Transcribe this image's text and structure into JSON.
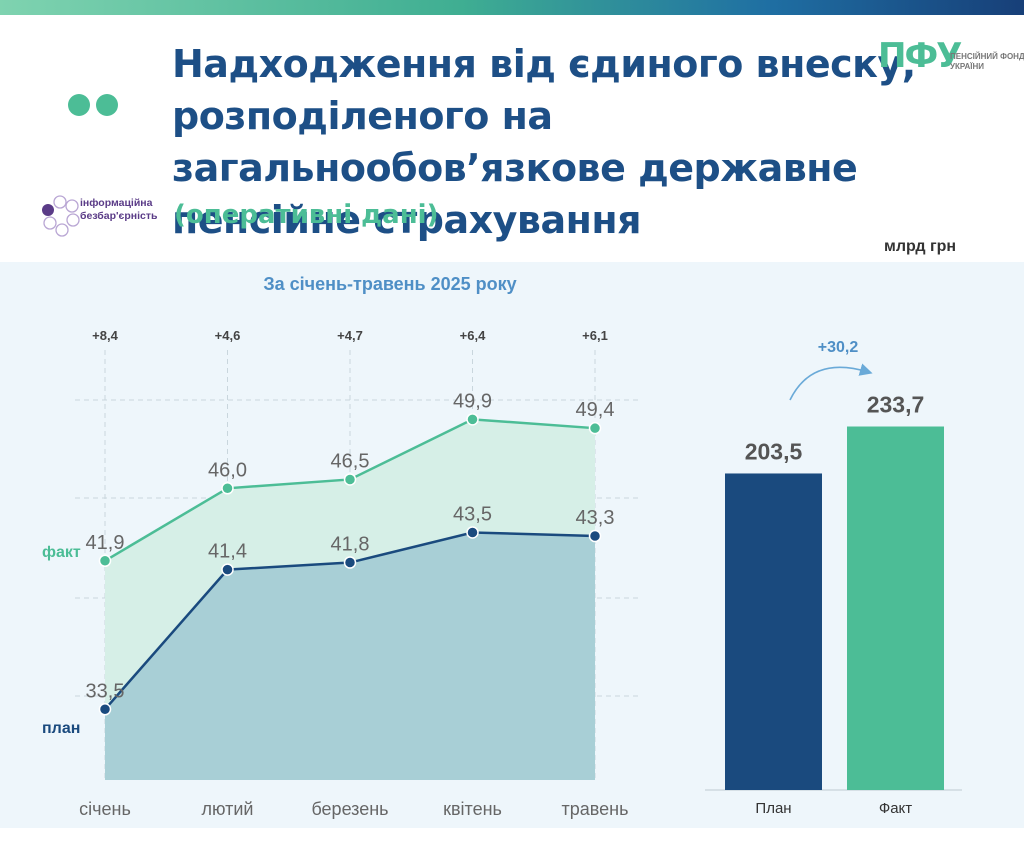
{
  "header": {
    "title": "Надходження від єдиного внеску, розподіленого на загальнообов’язкове державне пенсійне страхування",
    "subtitle": "(оперативні дані)",
    "logo_mark": "ПФУ",
    "logo_text": "ПЕНСІЙНИЙ ФОНД УКРАЇНИ",
    "accessibility_label": "інформаційна безбар'єрність",
    "unit": "млрд грн",
    "period": "За січень-травень 2025 року"
  },
  "colors": {
    "plan": "#1a4a7e",
    "fact": "#4cbd96",
    "plan_area": "#a8cfd6",
    "fact_area": "#d6efe7",
    "title": "#1d4f86"
  },
  "chart_data": [
    {
      "type": "line",
      "title": "За січень-травень 2025 року",
      "ylabel": "млрд грн",
      "categories": [
        "січень",
        "лютий",
        "березень",
        "квітень",
        "травень"
      ],
      "series": [
        {
          "name": "факт",
          "values": [
            41.9,
            46.0,
            46.5,
            49.9,
            49.4
          ],
          "labels": [
            "41,9",
            "46,0",
            "46,5",
            "49,9",
            "49,4"
          ],
          "color": "#4cbd96"
        },
        {
          "name": "план",
          "values": [
            33.5,
            41.4,
            41.8,
            43.5,
            43.3
          ],
          "labels": [
            "33,5",
            "41,4",
            "41,8",
            "43,5",
            "43,3"
          ],
          "color": "#1a4a7e"
        }
      ],
      "differences": [
        "+8,4",
        "+4,6",
        "+4,7",
        "+6,4",
        "+6,1"
      ],
      "grid": true,
      "area_fill": true
    },
    {
      "type": "bar",
      "categories": [
        "План",
        "Факт"
      ],
      "values": [
        203.5,
        233.7
      ],
      "labels": [
        "203,5",
        "233,7"
      ],
      "difference": "+30,2",
      "colors": [
        "#1a4a7e",
        "#4cbd96"
      ]
    }
  ]
}
